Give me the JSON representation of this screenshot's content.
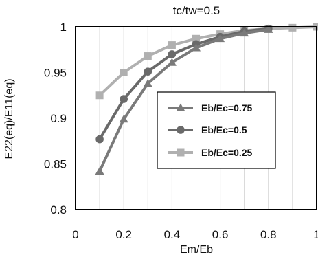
{
  "chart_data": {
    "type": "line",
    "title": "tc/tw=0.5",
    "xlabel": "Em/Eb",
    "ylabel": "E22(eq)/E11(eq)",
    "xlim": [
      0,
      1
    ],
    "ylim": [
      0.8,
      1
    ],
    "x_ticks": [
      "0",
      "0.2",
      "0.4",
      "0.6",
      "0.8",
      "1"
    ],
    "y_ticks": [
      "0.8",
      "0.85",
      "0.9",
      "0.95",
      "1"
    ],
    "grid": "vertical",
    "legend_position": "center-right",
    "series": [
      {
        "name": "Eb/Ec=0.75",
        "marker": "triangle",
        "color": "#7a7a7a",
        "x": [
          0.1,
          0.2,
          0.3,
          0.4,
          0.5,
          0.6,
          0.7,
          0.8
        ],
        "y": [
          0.842,
          0.899,
          0.938,
          0.961,
          0.977,
          0.987,
          0.993,
          0.997
        ]
      },
      {
        "name": "Eb/Ec=0.5",
        "marker": "circle",
        "color": "#6a6a6a",
        "x": [
          0.1,
          0.2,
          0.3,
          0.4,
          0.5,
          0.6,
          0.7,
          0.8
        ],
        "y": [
          0.877,
          0.921,
          0.951,
          0.97,
          0.981,
          0.989,
          0.995,
          0.998
        ]
      },
      {
        "name": "Eb/Ec=0.25",
        "marker": "square",
        "color": "#b0b0b0",
        "x": [
          0.1,
          0.2,
          0.3,
          0.4,
          0.5,
          0.6,
          0.7,
          0.8,
          0.9,
          1.0
        ],
        "y": [
          0.925,
          0.95,
          0.968,
          0.98,
          0.987,
          0.992,
          0.996,
          0.998,
          0.999,
          1.0
        ]
      }
    ]
  }
}
